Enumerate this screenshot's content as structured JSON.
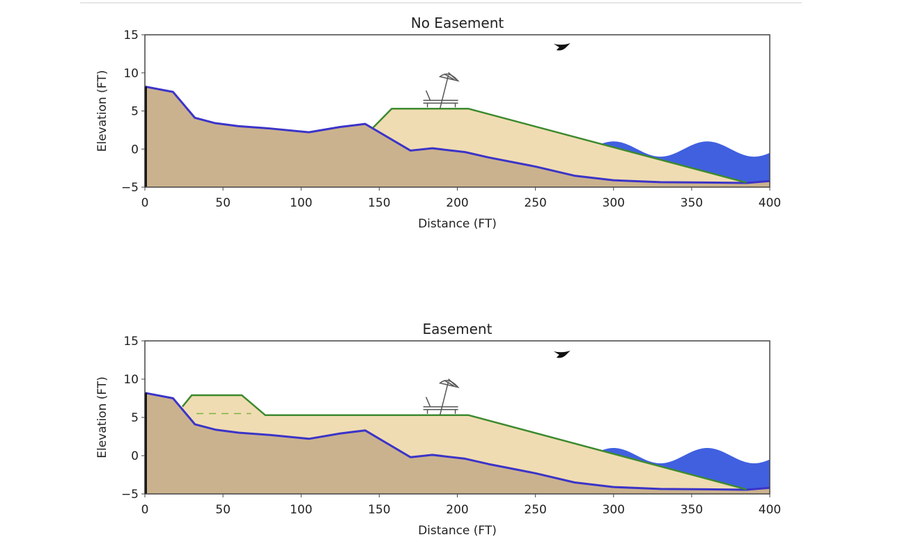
{
  "colors": {
    "dune": "#cbb28e",
    "nourishment": "#f0dcb2",
    "profile_line": "#3b34c8",
    "fill_line": "#3d8a2f",
    "water": "#4060e0",
    "wall": "#000000"
  },
  "icons": [
    "beach-umbrella-chair-icon",
    "bird-icon"
  ],
  "chart_data": [
    {
      "type": "area",
      "title": "No Easement",
      "xlabel": "Distance (FT)",
      "ylabel": "Elevation (FT)",
      "xlim": [
        0,
        400
      ],
      "ylim": [
        -5,
        15
      ],
      "xticks": [
        "0",
        "50",
        "100",
        "150",
        "200",
        "250",
        "300",
        "350",
        "400"
      ],
      "yticks": [
        "−5",
        "0",
        "5",
        "10",
        "15"
      ],
      "grid": false,
      "existing_profile": {
        "x": [
          0,
          18,
          32,
          45,
          60,
          80,
          105,
          125,
          141,
          170,
          184,
          205,
          220,
          250,
          275,
          300,
          330,
          360,
          385,
          400
        ],
        "y": [
          8.2,
          7.5,
          4.1,
          3.4,
          3.0,
          2.7,
          2.2,
          2.9,
          3.3,
          -0.2,
          0.1,
          -0.4,
          -1.1,
          -2.3,
          -3.5,
          -4.1,
          -4.35,
          -4.4,
          -4.45,
          -4.2
        ]
      },
      "fill_profile": {
        "x": [
          146,
          158,
          207,
          385
        ],
        "y": [
          2.8,
          5.3,
          5.3,
          -4.4
        ]
      },
      "water": {
        "mean": 0,
        "amplitude": 1,
        "period_ft": 60,
        "start_x": 290
      },
      "seawall": {
        "x": 0,
        "top": 8.2
      },
      "dashed_line": null
    },
    {
      "type": "area",
      "title": "Easement",
      "xlabel": "Distance (FT)",
      "ylabel": "Elevation (FT)",
      "xlim": [
        0,
        400
      ],
      "ylim": [
        -5,
        15
      ],
      "xticks": [
        "0",
        "50",
        "100",
        "150",
        "200",
        "250",
        "300",
        "350",
        "400"
      ],
      "yticks": [
        "−5",
        "0",
        "5",
        "10",
        "15"
      ],
      "grid": false,
      "existing_profile": {
        "x": [
          0,
          18,
          32,
          45,
          60,
          80,
          105,
          125,
          141,
          170,
          184,
          205,
          220,
          250,
          275,
          300,
          330,
          360,
          385,
          400
        ],
        "y": [
          8.2,
          7.5,
          4.1,
          3.4,
          3.0,
          2.7,
          2.2,
          2.9,
          3.3,
          -0.2,
          0.1,
          -0.4,
          -1.1,
          -2.3,
          -3.5,
          -4.1,
          -4.35,
          -4.4,
          -4.45,
          -4.2
        ]
      },
      "fill_profile": {
        "x": [
          24,
          30,
          62,
          77,
          207,
          385
        ],
        "y": [
          6.4,
          7.9,
          7.9,
          5.3,
          5.3,
          -4.4
        ]
      },
      "water": {
        "mean": 0,
        "amplitude": 1,
        "period_ft": 60,
        "start_x": 290
      },
      "seawall": {
        "x": 0,
        "top": 8.2
      },
      "dashed_line": {
        "x": [
          33,
          68
        ],
        "y": 5.5
      }
    }
  ]
}
